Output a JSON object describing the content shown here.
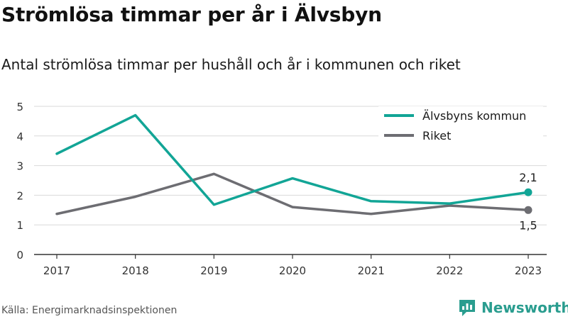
{
  "title": "Strömlösa timmar per år i Älvsbyn",
  "subtitle": "Antal strömlösa timmar per hushåll och år i kommunen och riket",
  "source": "Källa: Energimarknadsinspektionen",
  "brand": {
    "name": "Newsworthy",
    "icon": "newsworthy-logo-icon"
  },
  "colors": {
    "kommun": "#12a596",
    "riket": "#6d6d72",
    "grid": "#d9d9d9",
    "axis": "#333333"
  },
  "chart_data": {
    "type": "line",
    "x": [
      "2017",
      "2018",
      "2019",
      "2020",
      "2021",
      "2022",
      "2023"
    ],
    "series": [
      {
        "name": "Älvsbyns kommun",
        "values": [
          3.4,
          4.7,
          1.68,
          2.57,
          1.8,
          1.72,
          2.1
        ]
      },
      {
        "name": "Riket",
        "values": [
          1.37,
          1.95,
          2.72,
          1.6,
          1.37,
          1.65,
          1.5
        ]
      }
    ],
    "end_labels": [
      "2,1",
      "1,5"
    ],
    "yticks": [
      "0",
      "1",
      "2",
      "3",
      "4",
      "5"
    ],
    "ylim": [
      0,
      5
    ],
    "grid": true,
    "legend": "top-right"
  }
}
